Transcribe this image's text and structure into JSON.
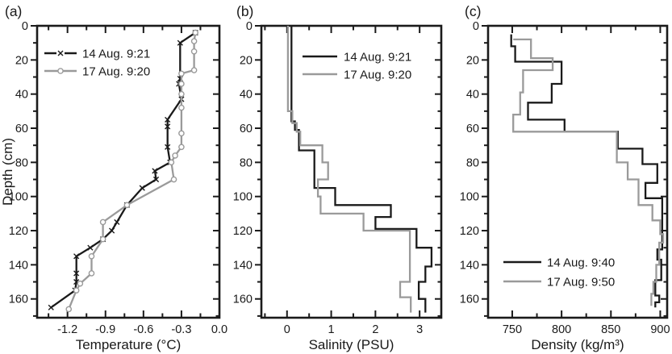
{
  "figure": {
    "background": "#ffffff",
    "ink_color": "#1a1a1a",
    "gray_color": "#9a9a9a"
  },
  "chart_data": [
    {
      "id": "a",
      "panel_label": "(a)",
      "type": "line",
      "title": "",
      "xlabel": "Temperature (°C)",
      "ylabel": "Depth (cm)",
      "xlim": [
        -1.44,
        0.0
      ],
      "ylim": [
        0,
        171
      ],
      "x_major_ticks": [
        -1.2,
        -0.9,
        -0.6,
        -0.3,
        0.0
      ],
      "x_tick_labels": [
        "-1.2",
        "-0.9",
        "-0.6",
        "-0.3",
        "0.0"
      ],
      "x_minor_ticks": [
        -1.35,
        -1.05,
        -0.75,
        -0.45,
        -0.15
      ],
      "y_major_ticks": [
        0,
        20,
        40,
        60,
        80,
        100,
        120,
        140,
        160
      ],
      "y_tick_labels": [
        "0",
        "20",
        "40",
        "60",
        "80",
        "100",
        "120",
        "140",
        "160"
      ],
      "y_minor_ticks": [
        10,
        30,
        50,
        70,
        90,
        110,
        130,
        150,
        170
      ],
      "grid": false,
      "legend_position": "upper-left-inside",
      "series": [
        {
          "name": "14 Aug. 9:21",
          "color": "#1a1a1a",
          "marker": "x",
          "points": [
            [
              -0.19,
              4
            ],
            [
              -0.31,
              10
            ],
            [
              -0.31,
              31
            ],
            [
              -0.32,
              34
            ],
            [
              -0.3,
              43
            ],
            [
              -0.41,
              55
            ],
            [
              -0.41,
              59
            ],
            [
              -0.41,
              71
            ],
            [
              -0.39,
              80
            ],
            [
              -0.51,
              85
            ],
            [
              -0.5,
              90
            ],
            [
              -0.61,
              95
            ],
            [
              -0.73,
              105
            ],
            [
              -0.81,
              115
            ],
            [
              -0.85,
              120
            ],
            [
              -0.92,
              125
            ],
            [
              -1.02,
              130
            ],
            [
              -1.13,
              135
            ],
            [
              -1.13,
              145
            ],
            [
              -1.13,
              150
            ],
            [
              -1.14,
              155
            ],
            [
              -1.33,
              165
            ]
          ]
        },
        {
          "name": "17 Aug. 9:20",
          "color": "#9a9a9a",
          "marker": "o",
          "points": [
            [
              -0.19,
              4
            ],
            [
              -0.2,
              9
            ],
            [
              -0.2,
              15
            ],
            [
              -0.2,
              26
            ],
            [
              -0.3,
              28
            ],
            [
              -0.3,
              34
            ],
            [
              -0.3,
              40
            ],
            [
              -0.3,
              48
            ],
            [
              -0.3,
              63
            ],
            [
              -0.3,
              71
            ],
            [
              -0.35,
              76
            ],
            [
              -0.38,
              80
            ],
            [
              -0.36,
              90
            ],
            [
              -0.73,
              105
            ],
            [
              -0.92,
              115
            ],
            [
              -0.92,
              125
            ],
            [
              -1.01,
              135
            ],
            [
              -1.01,
              145
            ],
            [
              -1.1,
              151
            ],
            [
              -1.13,
              155
            ],
            [
              -1.19,
              166
            ]
          ]
        }
      ]
    },
    {
      "id": "b",
      "panel_label": "(b)",
      "type": "line",
      "title": "",
      "xlabel": "Salinity (PSU)",
      "ylabel": "",
      "xlim": [
        -0.58,
        3.49
      ],
      "ylim": [
        0,
        171
      ],
      "x_major_ticks": [
        0,
        1,
        2,
        3
      ],
      "x_tick_labels": [
        "0",
        "1",
        "2",
        "3"
      ],
      "x_minor_ticks": [
        -0.5,
        0.5,
        1.5,
        2.5
      ],
      "y_major_ticks": [
        0,
        20,
        40,
        60,
        80,
        100,
        120,
        140,
        160
      ],
      "y_tick_labels": [
        "0",
        "20",
        "40",
        "60",
        "80",
        "100",
        "120",
        "140",
        "160"
      ],
      "y_minor_ticks": [
        10,
        30,
        50,
        70,
        90,
        110,
        130,
        150,
        170
      ],
      "grid": false,
      "legend_position": "upper-center-inside",
      "series": [
        {
          "name": "14 Aug. 9:21",
          "color": "#1a1a1a",
          "marker": "none",
          "points": [
            [
              0.1,
              0
            ],
            [
              0.1,
              56
            ],
            [
              0.18,
              56
            ],
            [
              0.18,
              61
            ],
            [
              0.27,
              61
            ],
            [
              0.27,
              73
            ],
            [
              0.62,
              73
            ],
            [
              0.62,
              95
            ],
            [
              1.09,
              95
            ],
            [
              1.09,
              105
            ],
            [
              2.35,
              105
            ],
            [
              2.35,
              112
            ],
            [
              2.0,
              112
            ],
            [
              2.0,
              119
            ],
            [
              2.93,
              119
            ],
            [
              2.93,
              130
            ],
            [
              3.27,
              130
            ],
            [
              3.27,
              141
            ],
            [
              3.13,
              141
            ],
            [
              3.13,
              150
            ],
            [
              2.98,
              150
            ],
            [
              2.98,
              160
            ],
            [
              3.13,
              160
            ],
            [
              3.13,
              168
            ]
          ]
        },
        {
          "name": "17 Aug. 9:20",
          "color": "#9a9a9a",
          "marker": "none",
          "points": [
            [
              0.02,
              0
            ],
            [
              0.02,
              50
            ],
            [
              0.12,
              50
            ],
            [
              0.12,
              57
            ],
            [
              0.22,
              57
            ],
            [
              0.22,
              62
            ],
            [
              0.3,
              62
            ],
            [
              0.3,
              70
            ],
            [
              0.8,
              70
            ],
            [
              0.8,
              80
            ],
            [
              0.93,
              80
            ],
            [
              0.93,
              90
            ],
            [
              0.7,
              90
            ],
            [
              0.7,
              100
            ],
            [
              0.76,
              100
            ],
            [
              0.76,
              110
            ],
            [
              1.73,
              110
            ],
            [
              1.73,
              120
            ],
            [
              2.78,
              120
            ],
            [
              2.78,
              150
            ],
            [
              2.56,
              150
            ],
            [
              2.56,
              159
            ],
            [
              2.8,
              159
            ],
            [
              2.8,
              168
            ]
          ]
        }
      ]
    },
    {
      "id": "c",
      "panel_label": "(c)",
      "type": "line",
      "title": "",
      "xlabel": "Density (kg/m³)",
      "ylabel": "",
      "xlim": [
        725.5,
        907
      ],
      "ylim": [
        0,
        171
      ],
      "x_major_ticks": [
        750,
        800,
        850,
        900
      ],
      "x_tick_labels": [
        "750",
        "800",
        "850",
        "900"
      ],
      "x_minor_ticks": [
        775,
        825,
        875
      ],
      "y_major_ticks": [
        0,
        20,
        40,
        60,
        80,
        100,
        120,
        140,
        160
      ],
      "y_tick_labels": [
        "0",
        "20",
        "40",
        "60",
        "80",
        "100",
        "120",
        "140",
        "160"
      ],
      "y_minor_ticks": [
        10,
        30,
        50,
        70,
        90,
        110,
        130,
        150,
        170
      ],
      "grid": false,
      "legend_position": "lower-left-inside",
      "series": [
        {
          "name": "14 Aug. 9:40",
          "color": "#1a1a1a",
          "marker": "none",
          "points": [
            [
              749,
              5
            ],
            [
              749,
              12
            ],
            [
              753,
              12
            ],
            [
              753,
              21
            ],
            [
              800,
              21
            ],
            [
              800,
              34
            ],
            [
              790,
              34
            ],
            [
              790,
              45
            ],
            [
              766,
              45
            ],
            [
              766,
              55
            ],
            [
              803,
              55
            ],
            [
              803,
              62
            ],
            [
              857,
              62
            ],
            [
              857,
              72
            ],
            [
              882,
              72
            ],
            [
              882,
              81
            ],
            [
              897,
              81
            ],
            [
              897,
              92
            ],
            [
              885,
              92
            ],
            [
              885,
              101
            ],
            [
              902,
              101
            ],
            [
              902,
              131
            ],
            [
              897,
              131
            ],
            [
              897,
              137
            ],
            [
              901,
              137
            ],
            [
              901,
              149
            ],
            [
              895,
              149
            ],
            [
              895,
              158
            ],
            [
              899,
              158
            ],
            [
              899,
              162
            ],
            [
              895,
              162
            ],
            [
              895,
              165
            ]
          ]
        },
        {
          "name": "17 Aug. 9:50",
          "color": "#9a9a9a",
          "marker": "none",
          "points": [
            [
              751,
              8
            ],
            [
              769,
              8
            ],
            [
              769,
              19
            ],
            [
              791,
              19
            ],
            [
              791,
              26
            ],
            [
              761,
              26
            ],
            [
              761,
              39
            ],
            [
              758,
              39
            ],
            [
              758,
              52
            ],
            [
              751,
              52
            ],
            [
              751,
              62
            ],
            [
              856,
              62
            ],
            [
              856,
              80
            ],
            [
              867,
              80
            ],
            [
              867,
              90
            ],
            [
              878,
              90
            ],
            [
              878,
              105
            ],
            [
              892,
              105
            ],
            [
              892,
              114
            ],
            [
              900,
              114
            ],
            [
              900,
              122
            ],
            [
              903,
              122
            ],
            [
              903,
              127
            ],
            [
              899,
              127
            ],
            [
              899,
              140
            ],
            [
              896,
              140
            ],
            [
              896,
              150
            ],
            [
              893,
              150
            ],
            [
              893,
              157
            ],
            [
              891,
              157
            ],
            [
              891,
              164
            ]
          ]
        }
      ]
    }
  ]
}
